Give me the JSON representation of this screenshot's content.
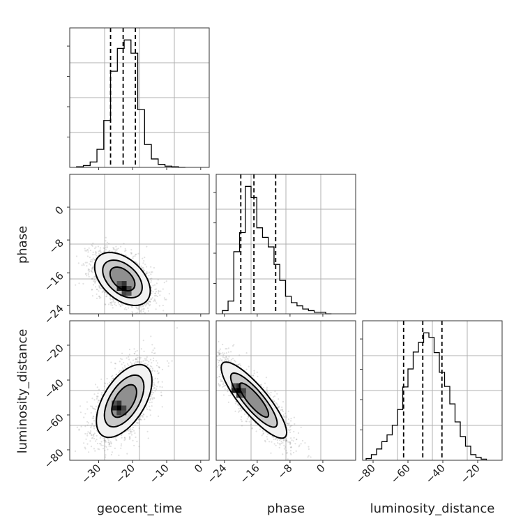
{
  "chart_data": {
    "type": "corner",
    "parameters": [
      "geocent_time",
      "phase",
      "luminosity_distance"
    ],
    "axis_labels": {
      "geocent_time": "geocent_time",
      "phase": "phase",
      "luminosity_distance": "luminosity_distance"
    },
    "ranges": {
      "geocent_time": [
        -38.5,
        2.5
      ],
      "phase": [
        -26.0,
        8.0
      ],
      "luminosity_distance": [
        -86.0,
        -6.0
      ]
    },
    "ticks": {
      "geocent_time": [
        -30,
        -20,
        -10,
        0
      ],
      "phase": [
        -24,
        -16,
        -8,
        0
      ],
      "luminosity_distance_x": [
        -80,
        -60,
        -40,
        -20
      ],
      "luminosity_distance_y": [
        -80,
        -60,
        -40,
        -20
      ]
    },
    "tick_labels": {
      "geocent_time": [
        "−30",
        "−20",
        "−10",
        "0"
      ],
      "phase_x": [
        "−24",
        "−16",
        "−8",
        "0"
      ],
      "phase_y": [
        "0",
        "−8",
        "−16",
        "−24"
      ],
      "luminosity_distance_x": [
        "−80",
        "−60",
        "−40",
        "−20"
      ],
      "luminosity_distance_y": [
        "−20",
        "−40",
        "−60",
        "−80"
      ]
    },
    "quantiles": {
      "geocent_time": [
        -26.5,
        -22.8,
        -19.2
      ],
      "phase": [
        -20.0,
        -16.8,
        -11.5
      ],
      "luminosity_distance": [
        -62.5,
        -51.5,
        -40.5
      ]
    },
    "histograms": {
      "geocent_time": {
        "edges": [
          -36.5,
          -34.5,
          -32.5,
          -30.5,
          -28.5,
          -26.5,
          -24.5,
          -22.5,
          -20.5,
          -18.5,
          -16.5,
          -14.5,
          -12.5,
          -10.5,
          -8.5,
          -6.5,
          -4.5
        ],
        "counts": [
          1,
          3,
          9,
          30,
          78,
          160,
          198,
          212,
          190,
          96,
          38,
          14,
          5,
          2,
          1,
          0
        ]
      },
      "phase": {
        "edges": [
          -24.5,
          -23.1,
          -21.7,
          -20.3,
          -18.9,
          -17.5,
          -16.1,
          -14.7,
          -13.3,
          -11.9,
          -10.5,
          -9.1,
          -7.7,
          -6.3,
          -4.9,
          -3.5,
          -2.1,
          -0.7,
          0.7,
          2.1
        ],
        "counts": [
          2,
          8,
          39,
          51,
          80,
          73,
          54,
          48,
          42,
          31,
          21,
          11,
          7,
          5,
          3,
          2,
          1,
          1,
          0
        ]
      },
      "luminosity_distance": {
        "edges": [
          -84.0,
          -81.0,
          -78.0,
          -75.0,
          -72.0,
          -69.0,
          -66.0,
          -63.0,
          -60.0,
          -57.0,
          -54.0,
          -51.0,
          -48.0,
          -45.0,
          -42.0,
          -39.0,
          -36.0,
          -33.0,
          -30.0,
          -27.0,
          -24.0,
          -21.0,
          -18.0,
          -15.0
        ],
        "counts": [
          3,
          10,
          20,
          33,
          45,
          62,
          90,
          130,
          162,
          192,
          209,
          226,
          218,
          191,
          156,
          131,
          100,
          68,
          42,
          25,
          10,
          5,
          2
        ]
      }
    },
    "pairs": [
      {
        "x": "geocent_time",
        "y": "phase",
        "mean": [
          -23.0,
          -17.5
        ],
        "sd": [
          4.3,
          3.4
        ],
        "corr": -0.45,
        "peak": [
          -22.5,
          -19.8
        ],
        "n_samples": 2200
      },
      {
        "x": "geocent_time",
        "y": "luminosity_distance",
        "mean": [
          -22.5,
          -52.0
        ],
        "sd": [
          4.3,
          11.0
        ],
        "corr": 0.55,
        "peak": [
          -24.0,
          -56.0
        ],
        "n_samples": 2200
      },
      {
        "x": "phase",
        "y": "luminosity_distance",
        "mean": [
          -16.8,
          -51.5
        ],
        "sd": [
          4.2,
          11.5
        ],
        "corr": -0.85,
        "peak": [
          -20.5,
          -46.0
        ],
        "n_samples": 2200
      }
    ],
    "grid": true,
    "legend": "none"
  }
}
